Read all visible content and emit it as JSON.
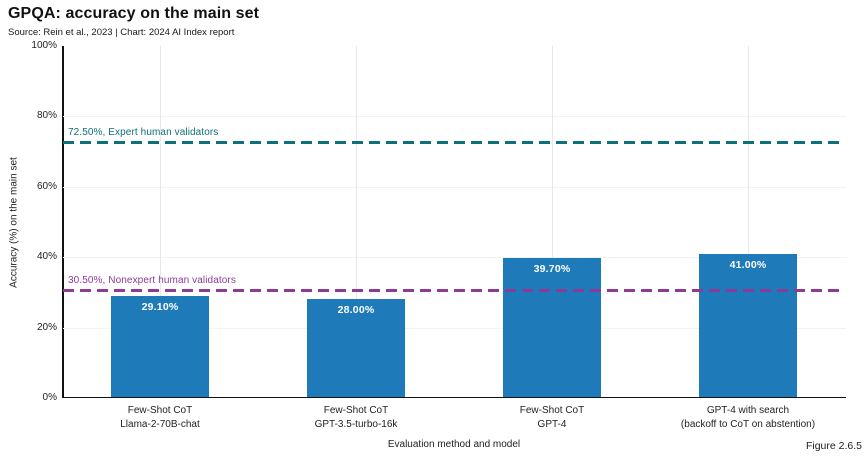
{
  "chart_data": {
    "type": "bar",
    "title": "GPQA: accuracy on the main set",
    "subtitle": "Source: Rein et al., 2023 | Chart: 2024 AI Index report",
    "xlabel": "Evaluation method and model",
    "ylabel": "Accuracy (%) on the main set",
    "figure_label": "Figure 2.6.5",
    "ylim": [
      0,
      100
    ],
    "yticks": [
      {
        "value": 0,
        "label": "0%"
      },
      {
        "value": 20,
        "label": "20%"
      },
      {
        "value": 40,
        "label": "40%"
      },
      {
        "value": 60,
        "label": "60%"
      },
      {
        "value": 80,
        "label": "80%"
      },
      {
        "value": 100,
        "label": "100%"
      }
    ],
    "categories": [
      {
        "line1": "Few-Shot CoT",
        "line2": "Llama-2-70B-chat"
      },
      {
        "line1": "Few-Shot CoT",
        "line2": "GPT-3.5-turbo-16k"
      },
      {
        "line1": "Few-Shot CoT",
        "line2": "GPT-4"
      },
      {
        "line1": "GPT-4 with search",
        "line2": "(backoff to CoT on abstention)"
      }
    ],
    "values": [
      29.1,
      28.0,
      39.7,
      41.0
    ],
    "value_labels": [
      "29.10%",
      "28.00%",
      "39.70%",
      "41.00%"
    ],
    "bar_color": "#1e7ab9",
    "reference_lines": [
      {
        "value": 72.5,
        "label": "72.50%, Expert human validators",
        "color": "#0e707a"
      },
      {
        "value": 30.5,
        "label": "30.50%, Nonexpert human validators",
        "color": "#8e3a97"
      }
    ],
    "grid": {
      "vertical_at_categories": true,
      "horizontal_at": [
        20,
        40,
        60,
        80
      ]
    },
    "legend_position": "none"
  }
}
